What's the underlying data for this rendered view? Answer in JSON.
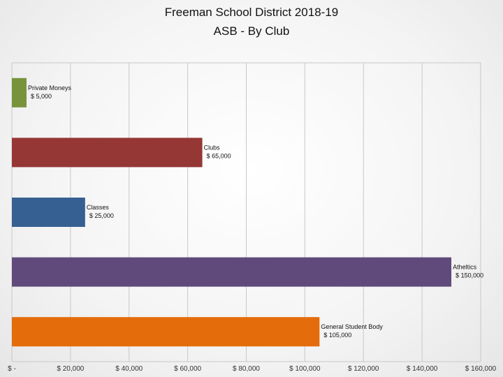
{
  "title_line1": "Freeman School District 2018-19",
  "title_line2": "ASB - By Club",
  "chart_data": {
    "type": "bar",
    "orientation": "horizontal",
    "title": "Freeman School District 2018-19 ASB - By Club",
    "categories": [
      "Private Moneys",
      "Clubs",
      "Classes",
      "Atheltics",
      "General Student Body"
    ],
    "values": [
      5000,
      65000,
      25000,
      150000,
      105000
    ],
    "value_labels": [
      "$ 5,000",
      "$ 65,000",
      "$ 25,000",
      "$ 150,000",
      "$ 105,000"
    ],
    "colors": [
      "#77933c",
      "#953735",
      "#376092",
      "#604a7b",
      "#e46c0a"
    ],
    "xlim": [
      0,
      160000
    ],
    "x_ticks": [
      0,
      20000,
      40000,
      60000,
      80000,
      100000,
      120000,
      140000,
      160000
    ],
    "x_tick_labels": [
      "$ -",
      "$ 20,000",
      "$ 40,000",
      "$ 60,000",
      "$ 80,000",
      "$ 100,000",
      "$ 120,000",
      "$ 140,000",
      "$ 160,000"
    ],
    "grid": true
  }
}
